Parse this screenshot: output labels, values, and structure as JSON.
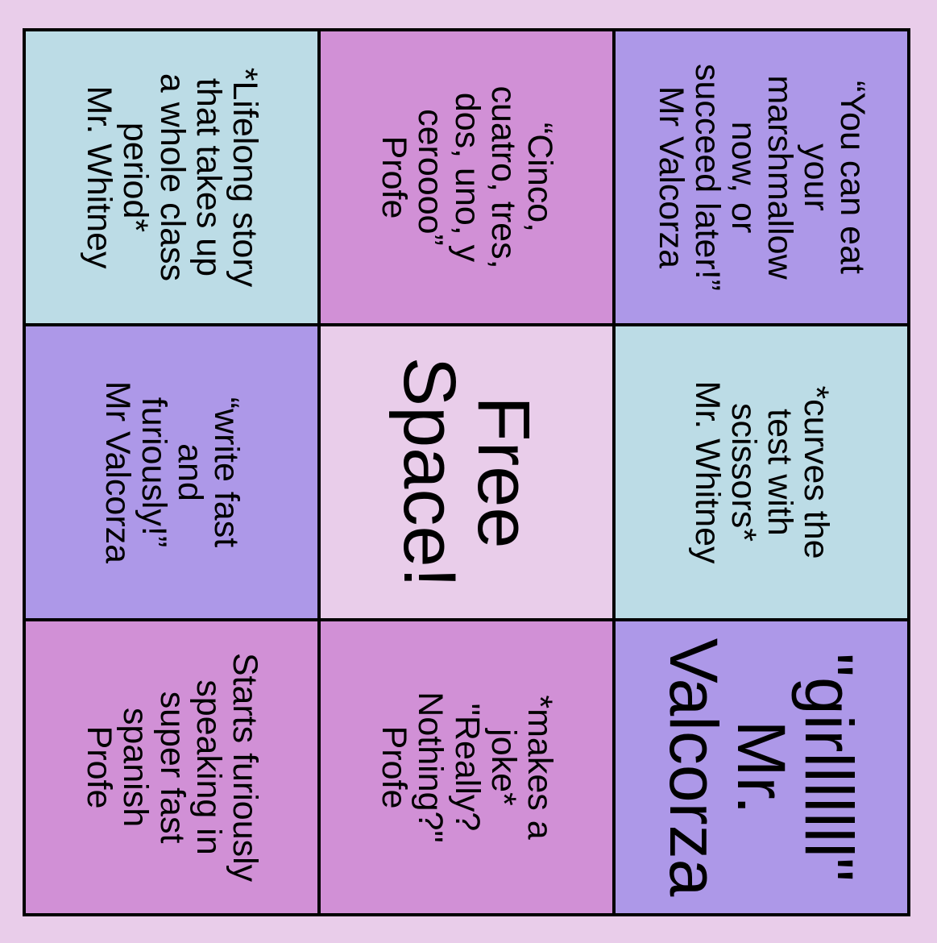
{
  "colors": {
    "background": "#e9cdea",
    "purple": "#ad98e8",
    "pink": "#d190d6",
    "blue": "#bcdce6",
    "center": "#e9cdea"
  },
  "cells": [
    {
      "text": "“You can eat\nyour\nmarshmallow\nnow, or\nsucceed later!”\nMr Valcorza",
      "color": "#ad98e8"
    },
    {
      "text": "*curves the\ntest with\nscissors*\nMr. Whitney",
      "color": "#bcdce6"
    },
    {
      "text": "\"girlllllll\"\nMr.\nValcorza",
      "color": "#ad98e8"
    },
    {
      "text": "“Cinco,\ncuatro, tres,\ndos, uno, y\nceroooo”\nProfe",
      "color": "#d190d6"
    },
    {
      "text": "Free\nSpace!",
      "color": "#e9cdea"
    },
    {
      "text": "*makes a\njoke*\n\"Really?\nNothing?\"\nProfe",
      "color": "#d190d6"
    },
    {
      "text": "*Lifelong story\nthat takes up\na whole class\nperiod*\nMr. Whitney",
      "color": "#bcdce6"
    },
    {
      "text": "“write fast\nand\nfuriously!”\nMr Valcorza",
      "color": "#ad98e8"
    },
    {
      "text": "Starts furiously\nspeaking in\nsuper fast\nspanish\nProfe",
      "color": "#d190d6"
    }
  ]
}
